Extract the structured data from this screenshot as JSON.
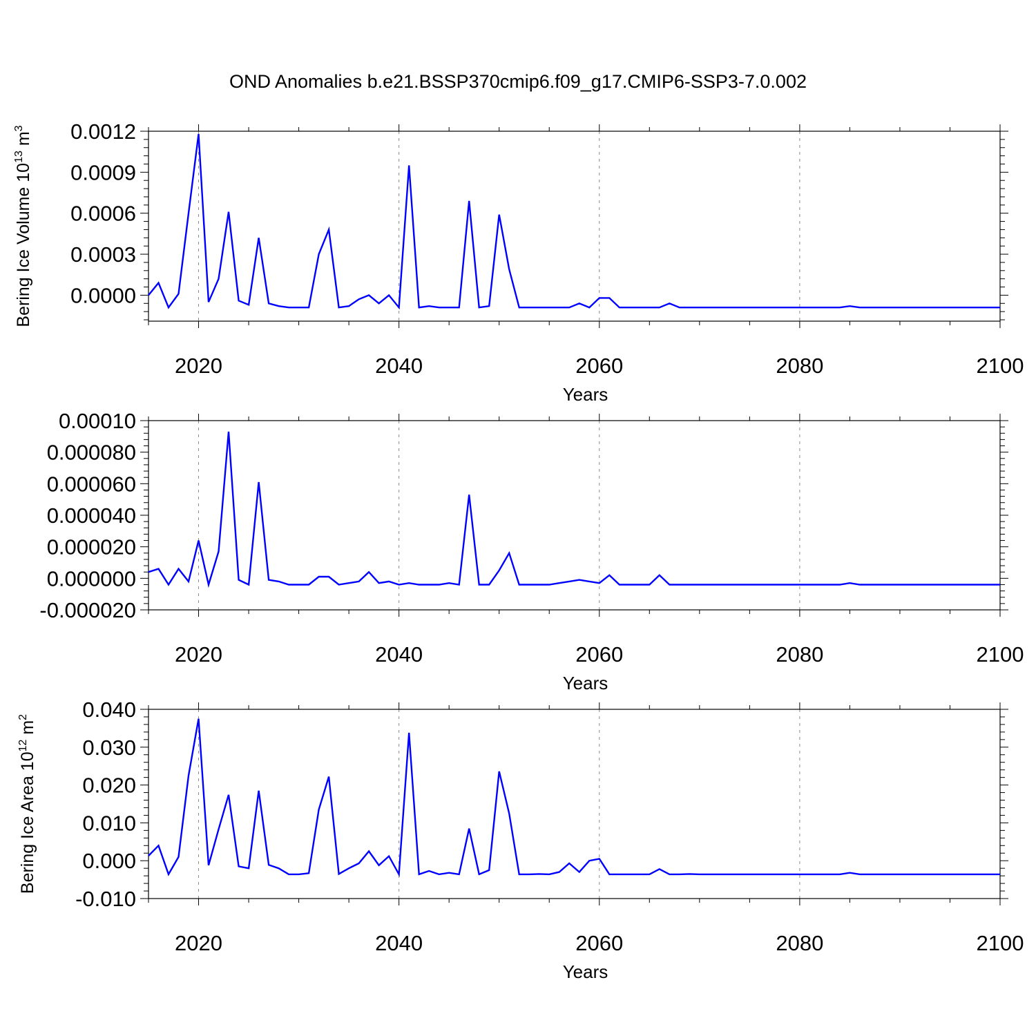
{
  "title": "OND Anomalies b.e21.BSSP370cmip6.f09_g17.CMIP6-SSP3-7.0.002",
  "colors": {
    "line": "#0000ff",
    "axis": "#000000",
    "grid": "#888888"
  },
  "chart_data": [
    {
      "type": "line",
      "ylabel_main": "Bering Ice Volume 10",
      "ylabel_exp": "13",
      "ylabel_unit": " m",
      "ylabel_unit_exp": "3",
      "xlabel": "Years",
      "xlim": [
        2015,
        2100
      ],
      "ylim": [
        -0.00019,
        0.0012
      ],
      "yticks": [
        0.0,
        0.0003,
        0.0006,
        0.0009,
        0.0012
      ],
      "ytick_labels": [
        "0.0000",
        "0.0003",
        "0.0006",
        "0.0009",
        "0.0012"
      ],
      "xticks": [
        2020,
        2040,
        2060,
        2080,
        2100
      ],
      "xtick_labels": [
        "2020",
        "2040",
        "2060",
        "2080",
        "2100"
      ],
      "x_start": 2015,
      "values": [
        0.0,
        9e-05,
        -9e-05,
        1e-05,
        0.0006,
        0.00118,
        -5e-05,
        0.00012,
        0.00061,
        -4e-05,
        -7e-05,
        0.00042,
        -6e-05,
        -8e-05,
        -9e-05,
        -9e-05,
        -9e-05,
        0.0003,
        0.00048,
        -9e-05,
        -8e-05,
        -3e-05,
        0.0,
        -6e-05,
        0.0,
        -9e-05,
        0.00095,
        -9e-05,
        -8e-05,
        -9e-05,
        -9e-05,
        -9e-05,
        0.00069,
        -9e-05,
        -8e-05,
        0.00059,
        0.00019,
        -9e-05,
        -9e-05,
        -9e-05,
        -9e-05,
        -9e-05,
        -9e-05,
        -6e-05,
        -9e-05,
        -2e-05,
        -2e-05,
        -9e-05,
        -9e-05,
        -9e-05,
        -9e-05,
        -9e-05,
        -6e-05,
        -9e-05,
        -9e-05,
        -9e-05,
        -9e-05,
        -9e-05,
        -9e-05,
        -9e-05,
        -9e-05,
        -9e-05,
        -9e-05,
        -9e-05,
        -9e-05,
        -9e-05,
        -9e-05,
        -9e-05,
        -9e-05,
        -9e-05,
        -8e-05,
        -9e-05,
        -9e-05,
        -9e-05,
        -9e-05,
        -9e-05,
        -9e-05,
        -9e-05,
        -9e-05,
        -9e-05,
        -9e-05,
        -9e-05,
        -9e-05,
        -9e-05,
        -9e-05,
        -9e-05
      ]
    },
    {
      "type": "line",
      "ylabel_main": "",
      "ylabel_exp": "",
      "ylabel_unit": "",
      "ylabel_unit_exp": "",
      "xlabel": "Years",
      "xlim": [
        2015,
        2100
      ],
      "ylim": [
        -2e-05,
        0.0001
      ],
      "yticks": [
        -2e-05,
        0.0,
        2e-05,
        4e-05,
        6e-05,
        8e-05,
        0.0001
      ],
      "ytick_labels": [
        "-0.000020",
        "0.000000",
        "0.000020",
        "0.000040",
        "0.000060",
        "0.000080",
        "0.00010"
      ],
      "xticks": [
        2020,
        2040,
        2060,
        2080,
        2100
      ],
      "xtick_labels": [
        "2020",
        "2040",
        "2060",
        "2080",
        "2100"
      ],
      "x_start": 2015,
      "values": [
        4e-06,
        6e-06,
        -4e-06,
        6e-06,
        -2e-06,
        2.4e-05,
        -4e-06,
        1.7e-05,
        9.3e-05,
        -1e-06,
        -4e-06,
        6.1e-05,
        -1e-06,
        -2e-06,
        -4e-06,
        -4e-06,
        -4e-06,
        1e-06,
        1e-06,
        -4e-06,
        -3e-06,
        -2e-06,
        4e-06,
        -3e-06,
        -2e-06,
        -4e-06,
        -3e-06,
        -4e-06,
        -4e-06,
        -4e-06,
        -3e-06,
        -4e-06,
        5.3e-05,
        -4e-06,
        -4e-06,
        5e-06,
        1.6e-05,
        -4e-06,
        -4e-06,
        -4e-06,
        -4e-06,
        -3e-06,
        -2e-06,
        -1e-06,
        -2e-06,
        -3e-06,
        2e-06,
        -4e-06,
        -4e-06,
        -4e-06,
        -4e-06,
        2e-06,
        -4e-06,
        -4e-06,
        -4e-06,
        -4e-06,
        -4e-06,
        -4e-06,
        -4e-06,
        -4e-06,
        -4e-06,
        -4e-06,
        -4e-06,
        -4e-06,
        -4e-06,
        -4e-06,
        -4e-06,
        -4e-06,
        -4e-06,
        -4e-06,
        -3e-06,
        -4e-06,
        -4e-06,
        -4e-06,
        -4e-06,
        -4e-06,
        -4e-06,
        -4e-06,
        -4e-06,
        -4e-06,
        -4e-06,
        -4e-06,
        -4e-06,
        -4e-06,
        -4e-06,
        -4e-06
      ]
    },
    {
      "type": "line",
      "ylabel_main": "Bering Ice Area 10",
      "ylabel_exp": "12",
      "ylabel_unit": " m",
      "ylabel_unit_exp": "2",
      "xlabel": "Years",
      "xlim": [
        2015,
        2100
      ],
      "ylim": [
        -0.01,
        0.04
      ],
      "yticks": [
        -0.01,
        0.0,
        0.01,
        0.02,
        0.03,
        0.04
      ],
      "ytick_labels": [
        "-0.010",
        "0.000",
        "0.010",
        "0.020",
        "0.030",
        "0.040"
      ],
      "xticks": [
        2020,
        2040,
        2060,
        2080,
        2100
      ],
      "xtick_labels": [
        "2020",
        "2040",
        "2060",
        "2080",
        "2100"
      ],
      "x_start": 2015,
      "values": [
        0.0013,
        0.004,
        -0.0036,
        0.001,
        0.0225,
        0.0375,
        -0.0012,
        0.0083,
        0.0174,
        -0.0015,
        -0.002,
        0.0185,
        -0.0011,
        -0.002,
        -0.0036,
        -0.0036,
        -0.0033,
        0.0135,
        0.0222,
        -0.0035,
        -0.002,
        -0.0007,
        0.0025,
        -0.0012,
        0.0012,
        -0.0036,
        0.0338,
        -0.0036,
        -0.0027,
        -0.0036,
        -0.0032,
        -0.0036,
        0.0085,
        -0.0036,
        -0.0025,
        0.0236,
        0.0125,
        -0.0036,
        -0.0036,
        -0.0035,
        -0.0036,
        -0.003,
        -0.0007,
        -0.003,
        0.0,
        0.0005,
        -0.0036,
        -0.0036,
        -0.0036,
        -0.0036,
        -0.0036,
        -0.0022,
        -0.0036,
        -0.0036,
        -0.0035,
        -0.0036,
        -0.0036,
        -0.0036,
        -0.0036,
        -0.0036,
        -0.0036,
        -0.0036,
        -0.0036,
        -0.0036,
        -0.0036,
        -0.0036,
        -0.0036,
        -0.0036,
        -0.0036,
        -0.0036,
        -0.0032,
        -0.0036,
        -0.0036,
        -0.0036,
        -0.0036,
        -0.0036,
        -0.0036,
        -0.0036,
        -0.0036,
        -0.0036,
        -0.0036,
        -0.0036,
        -0.0036,
        -0.0036,
        -0.0036,
        -0.0036
      ]
    }
  ]
}
